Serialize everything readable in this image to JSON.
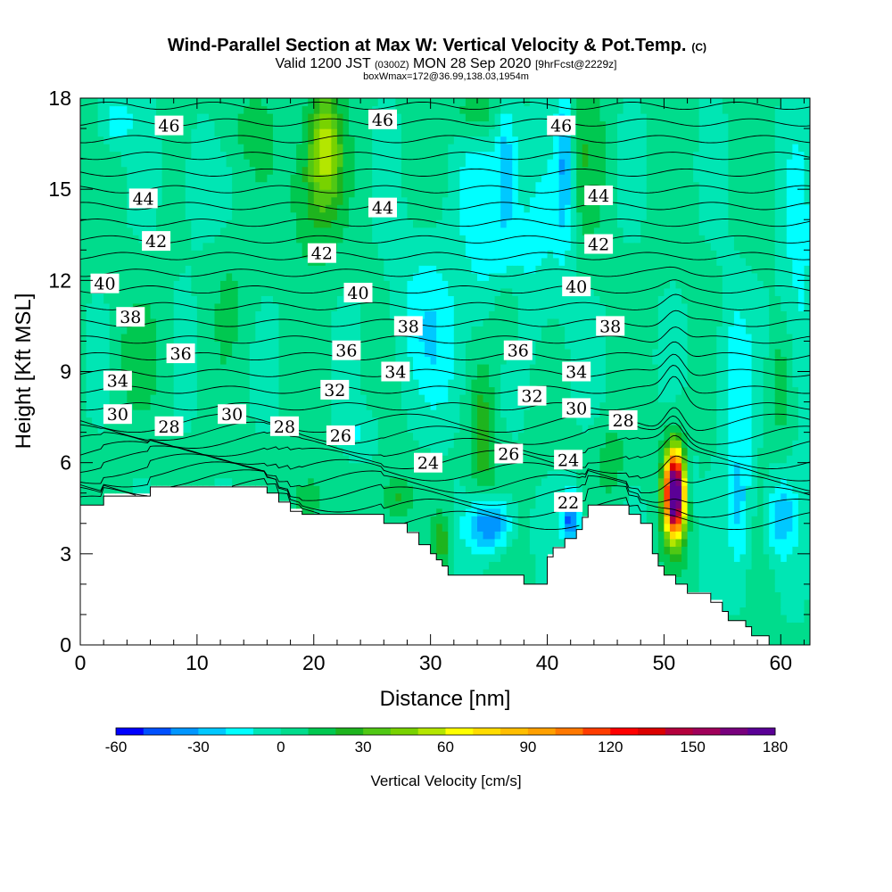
{
  "chart_data": {
    "type": "heatmap",
    "title": "Wind-Parallel Section at Max W: Vertical Velocity & Pot.Temp.",
    "title_mark": "(C)",
    "subtitle_parts": [
      "Valid 1200 JST ",
      "(0300Z)",
      " MON 28 Sep 2020 ",
      "[9hrFcst@2229z]"
    ],
    "subtitle2": "boxWmax=172@36.99,138.03,1954m",
    "xlabel": "Distance [nm]",
    "ylabel": "Height [Kft MSL]",
    "xlim": [
      0,
      62.5
    ],
    "ylim": [
      0,
      18
    ],
    "x_ticks": [
      0,
      10,
      20,
      30,
      40,
      50,
      60
    ],
    "y_ticks": [
      0,
      3,
      6,
      9,
      12,
      15,
      18
    ],
    "colorbar": {
      "label": "Vertical Velocity [cm/s]",
      "min": -60,
      "max": 180,
      "step": 10,
      "tick_values": [
        -60,
        -30,
        0,
        30,
        60,
        90,
        120,
        150,
        180
      ],
      "colors": [
        "#0000ff",
        "#0050ff",
        "#0096ff",
        "#00c8ff",
        "#00ffff",
        "#00e6b4",
        "#00dc8c",
        "#00c850",
        "#1eb41e",
        "#50c814",
        "#78d200",
        "#b4e600",
        "#ffff00",
        "#ffdc00",
        "#ffbe00",
        "#ffa000",
        "#ff7800",
        "#ff3c00",
        "#ff0000",
        "#dc0000",
        "#b4003c",
        "#a0005a",
        "#78007d",
        "#5a0096"
      ]
    },
    "terrain": [
      [
        0,
        4.6
      ],
      [
        2,
        4.6
      ],
      [
        2,
        4.9
      ],
      [
        6,
        4.9
      ],
      [
        6,
        5.2
      ],
      [
        16,
        5.2
      ],
      [
        16,
        5.0
      ],
      [
        17,
        5.0
      ],
      [
        17,
        4.7
      ],
      [
        18,
        4.7
      ],
      [
        18,
        4.4
      ],
      [
        19,
        4.4
      ],
      [
        19,
        4.3
      ],
      [
        26,
        4.3
      ],
      [
        26,
        4.0
      ],
      [
        28,
        4.0
      ],
      [
        28,
        3.7
      ],
      [
        29,
        3.7
      ],
      [
        29,
        3.3
      ],
      [
        30,
        3.3
      ],
      [
        30,
        3.0
      ],
      [
        30.5,
        3.0
      ],
      [
        30.5,
        2.8
      ],
      [
        31,
        2.8
      ],
      [
        31,
        2.6
      ],
      [
        31.5,
        2.6
      ],
      [
        31.5,
        2.3
      ],
      [
        38,
        2.3
      ],
      [
        38,
        2.0
      ],
      [
        40,
        2.0
      ],
      [
        40,
        2.9
      ],
      [
        40.5,
        2.9
      ],
      [
        40.5,
        3.2
      ],
      [
        41.5,
        3.2
      ],
      [
        41.5,
        3.5
      ],
      [
        42.5,
        3.5
      ],
      [
        42.5,
        3.8
      ],
      [
        43,
        3.8
      ],
      [
        43,
        4.2
      ],
      [
        43.5,
        4.2
      ],
      [
        43.5,
        4.6
      ],
      [
        47,
        4.6
      ],
      [
        47,
        4.3
      ],
      [
        48,
        4.3
      ],
      [
        48,
        4.0
      ],
      [
        49,
        4.0
      ],
      [
        49,
        3.0
      ],
      [
        49.5,
        3.0
      ],
      [
        49.5,
        2.6
      ],
      [
        50,
        2.6
      ],
      [
        50,
        2.3
      ],
      [
        51,
        2.3
      ],
      [
        51,
        2.0
      ],
      [
        52,
        2.0
      ],
      [
        52,
        1.7
      ],
      [
        54,
        1.7
      ],
      [
        54,
        1.4
      ],
      [
        55,
        1.4
      ],
      [
        55,
        1.1
      ],
      [
        55.5,
        1.1
      ],
      [
        55.5,
        0.8
      ],
      [
        57,
        0.8
      ],
      [
        57,
        0.6
      ],
      [
        57.5,
        0.6
      ],
      [
        57.5,
        0.3
      ],
      [
        59,
        0.3
      ],
      [
        59,
        0
      ],
      [
        62.5,
        0
      ]
    ],
    "updraft_max": {
      "x": 50.9,
      "y": 5.2,
      "value": 172
    },
    "theta_contours": [
      {
        "level": 22,
        "label_at": [
          41.8,
          4.7
        ]
      },
      {
        "level": 24,
        "label_at": [
          29.8,
          6.0
        ]
      },
      {
        "level": 24,
        "label_at": [
          41.8,
          6.1
        ]
      },
      {
        "level": 26,
        "label_at": [
          22.3,
          6.9
        ]
      },
      {
        "level": 26,
        "label_at": [
          36.7,
          6.3
        ]
      },
      {
        "level": 28,
        "label_at": [
          7.6,
          7.2
        ]
      },
      {
        "level": 28,
        "label_at": [
          17.5,
          7.2
        ]
      },
      {
        "level": 28,
        "label_at": [
          46.5,
          7.4
        ]
      },
      {
        "level": 30,
        "label_at": [
          3.2,
          7.6
        ]
      },
      {
        "level": 30,
        "label_at": [
          13.0,
          7.6
        ]
      },
      {
        "level": 30,
        "label_at": [
          42.5,
          7.8
        ]
      },
      {
        "level": 32,
        "label_at": [
          21.8,
          8.4
        ]
      },
      {
        "level": 32,
        "label_at": [
          38.7,
          8.2
        ]
      },
      {
        "level": 34,
        "label_at": [
          3.2,
          8.7
        ]
      },
      {
        "level": 34,
        "label_at": [
          27.0,
          9.0
        ]
      },
      {
        "level": 34,
        "label_at": [
          42.5,
          9.0
        ]
      },
      {
        "level": 36,
        "label_at": [
          8.6,
          9.6
        ]
      },
      {
        "level": 36,
        "label_at": [
          22.8,
          9.7
        ]
      },
      {
        "level": 36,
        "label_at": [
          37.5,
          9.7
        ]
      },
      {
        "level": 38,
        "label_at": [
          4.3,
          10.8
        ]
      },
      {
        "level": 38,
        "label_at": [
          28.1,
          10.5
        ]
      },
      {
        "level": 38,
        "label_at": [
          45.4,
          10.5
        ]
      },
      {
        "level": 40,
        "label_at": [
          2.1,
          11.9
        ]
      },
      {
        "level": 40,
        "label_at": [
          23.8,
          11.6
        ]
      },
      {
        "level": 40,
        "label_at": [
          42.5,
          11.8
        ]
      },
      {
        "level": 42,
        "label_at": [
          6.5,
          13.3
        ]
      },
      {
        "level": 42,
        "label_at": [
          20.7,
          12.9
        ]
      },
      {
        "level": 42,
        "label_at": [
          44.4,
          13.2
        ]
      },
      {
        "level": 44,
        "label_at": [
          5.4,
          14.7
        ]
      },
      {
        "level": 44,
        "label_at": [
          25.9,
          14.4
        ]
      },
      {
        "level": 44,
        "label_at": [
          44.4,
          14.8
        ]
      },
      {
        "level": 46,
        "label_at": [
          7.6,
          17.1
        ]
      },
      {
        "level": 46,
        "label_at": [
          25.9,
          17.3
        ]
      },
      {
        "level": 46,
        "label_at": [
          41.2,
          17.1
        ]
      }
    ]
  }
}
